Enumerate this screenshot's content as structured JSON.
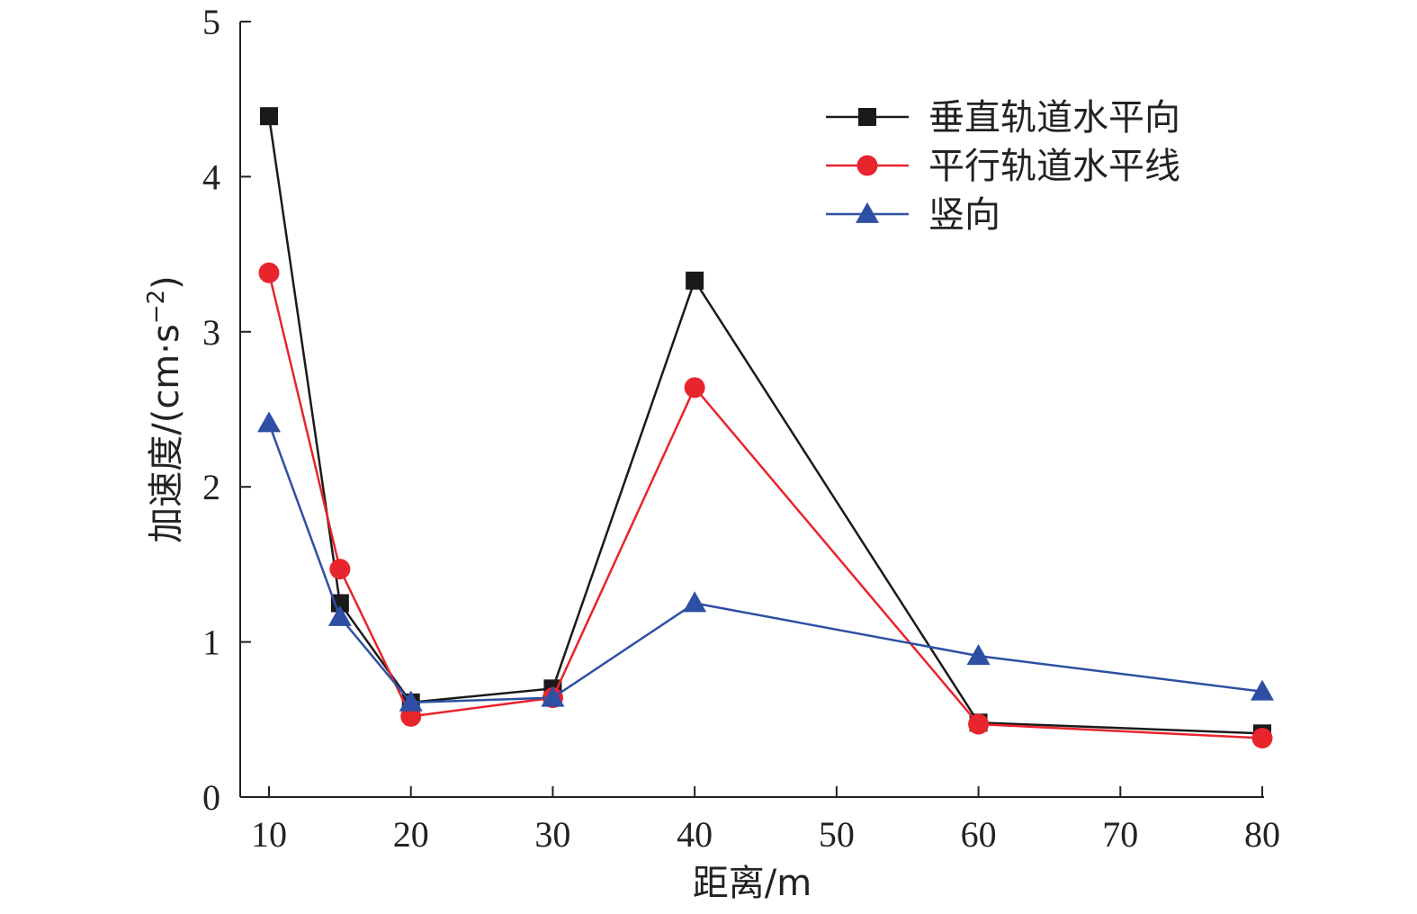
{
  "chart_data": {
    "type": "line",
    "xlabel": "距离/m",
    "ylabel": "加速度/(cm·s",
    "ylabel_sup": "−2",
    "ylabel_close": ")",
    "xlim": [
      8,
      80
    ],
    "ylim": [
      0,
      5
    ],
    "x_ticks": [
      10,
      20,
      30,
      40,
      50,
      60,
      70,
      80
    ],
    "y_ticks": [
      0,
      1,
      2,
      3,
      4,
      5
    ],
    "x_tick_labels": [
      "10",
      "20",
      "30",
      "40",
      "50",
      "60",
      "70",
      "80"
    ],
    "y_tick_labels": [
      "0",
      "1",
      "2",
      "3",
      "4",
      "5"
    ],
    "legend_position": "top-right",
    "series": [
      {
        "name": "垂直轨道水平向",
        "color": "#1a1a1a",
        "marker": "square",
        "x": [
          10,
          15,
          20,
          30,
          40,
          60,
          80
        ],
        "y": [
          4.39,
          1.25,
          0.61,
          0.7,
          3.33,
          0.48,
          0.41
        ]
      },
      {
        "name": "平行轨道水平线",
        "color": "#e8242d",
        "marker": "circle",
        "x": [
          10,
          15,
          20,
          30,
          40,
          60,
          80
        ],
        "y": [
          3.38,
          1.47,
          0.52,
          0.64,
          2.64,
          0.47,
          0.38
        ]
      },
      {
        "name": "竖向",
        "color": "#2e4fa3",
        "marker": "triangle",
        "x": [
          10,
          15,
          20,
          30,
          40,
          60,
          80
        ],
        "y": [
          2.41,
          1.16,
          0.61,
          0.64,
          1.25,
          0.91,
          0.68
        ]
      }
    ]
  }
}
